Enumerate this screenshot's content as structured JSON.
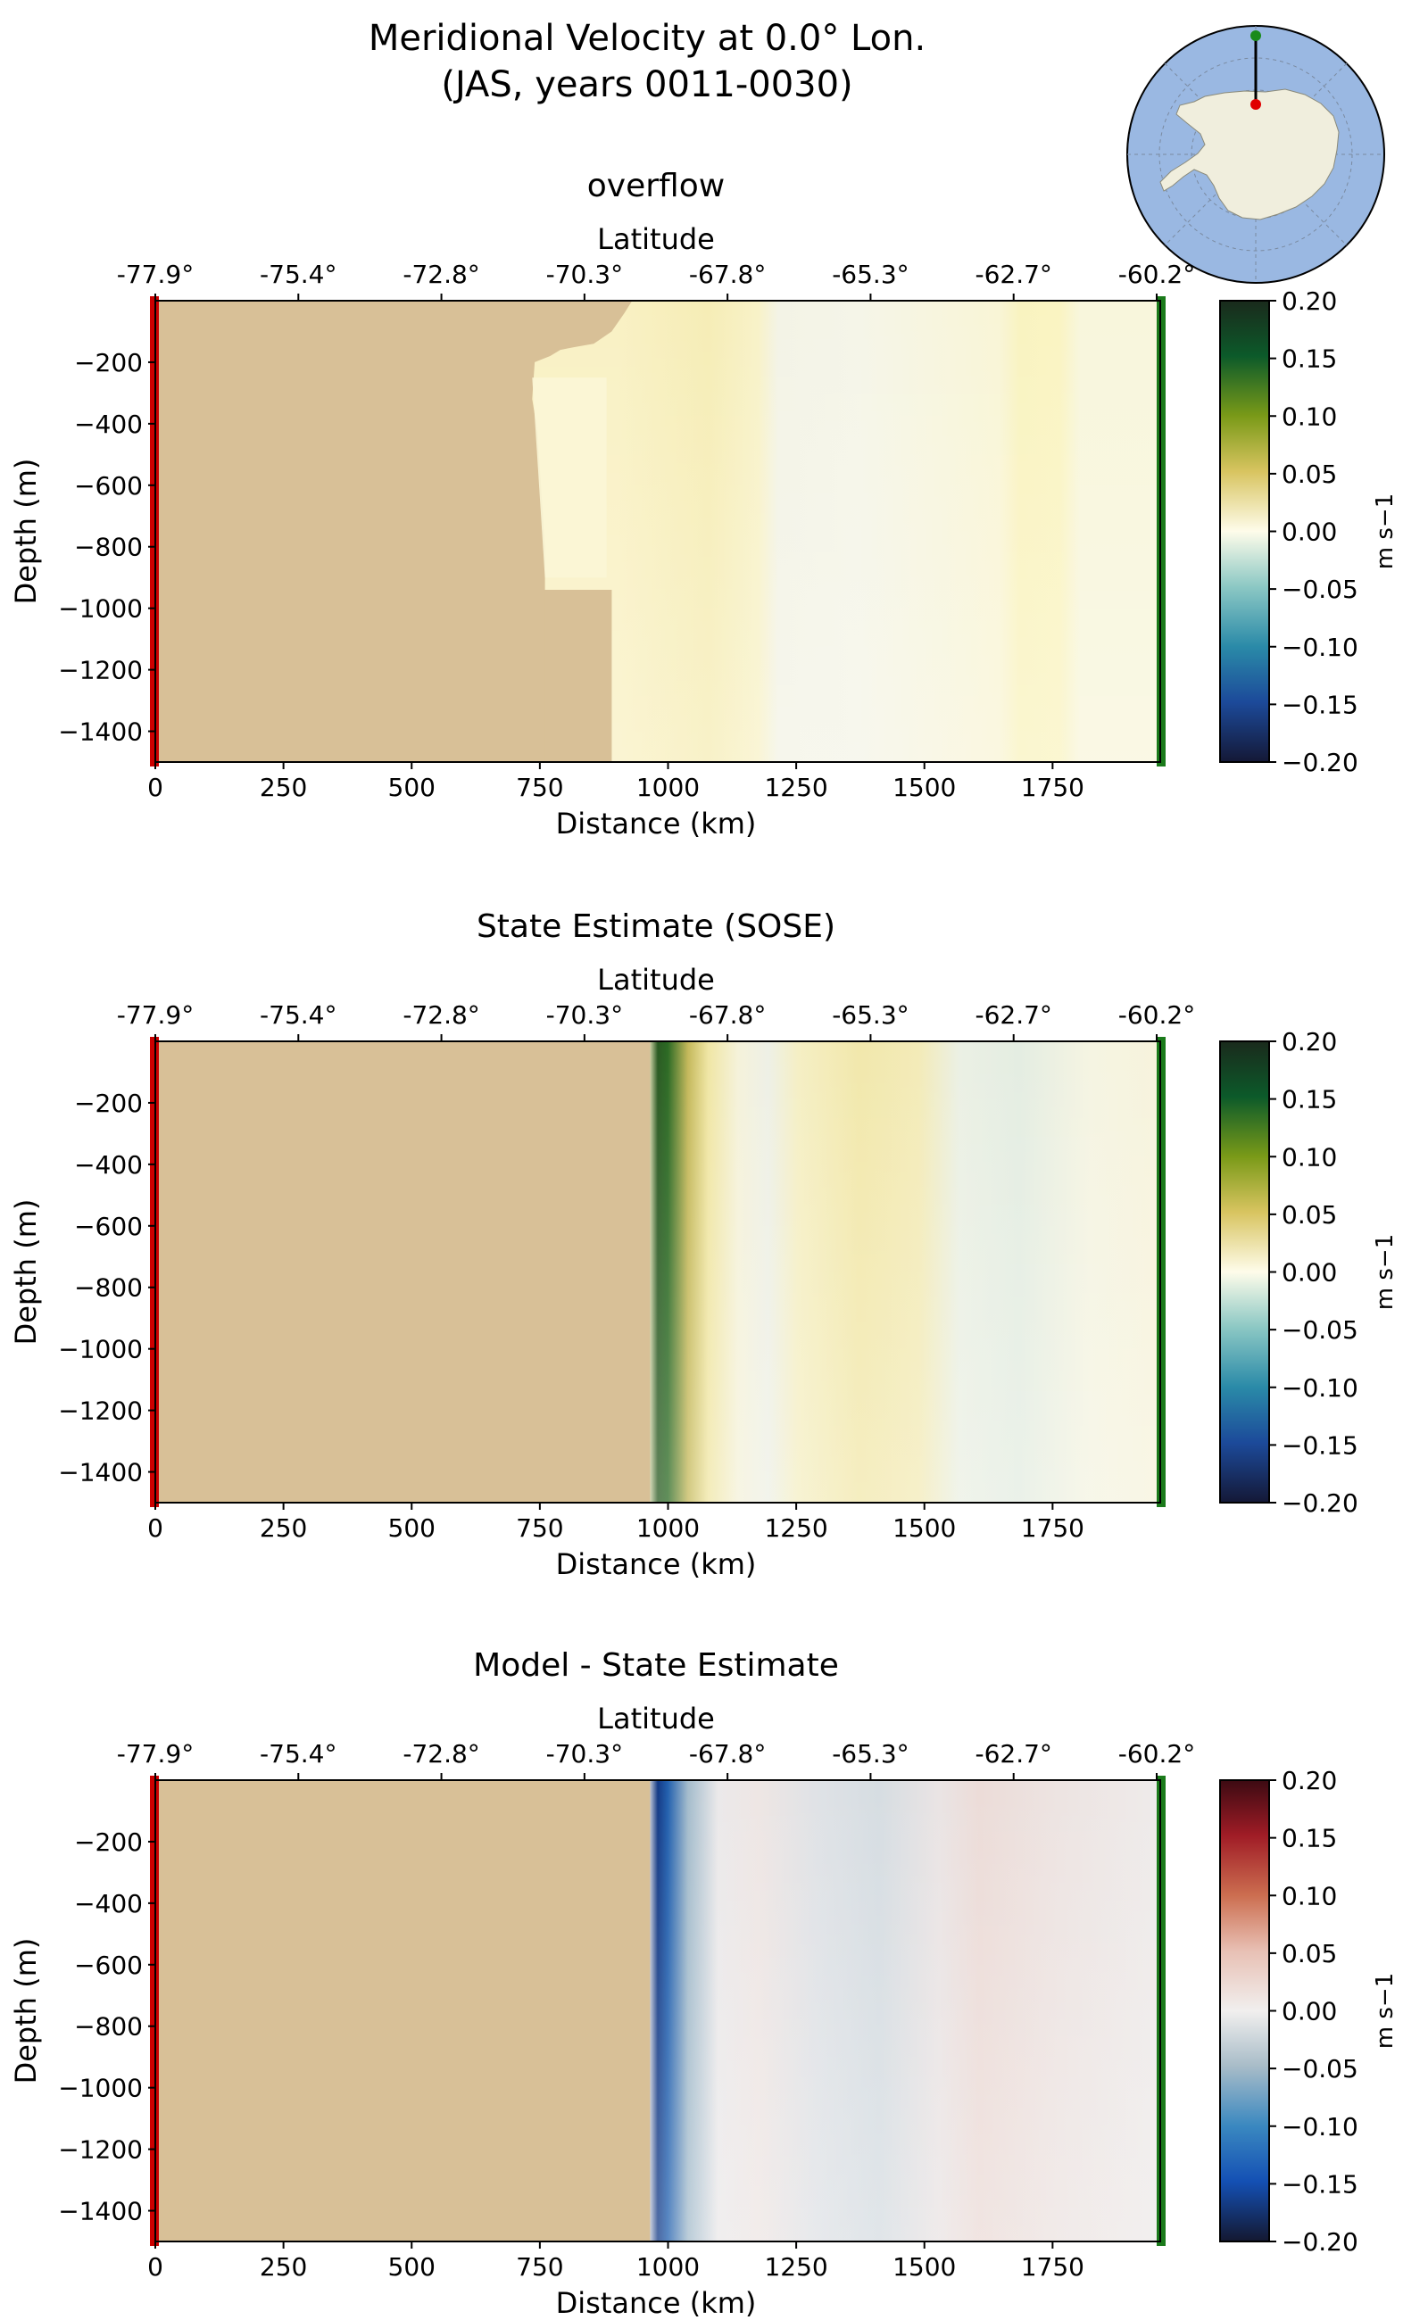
{
  "figure": {
    "title_line1": "Meridional Velocity at 0.0° Lon.",
    "title_line2": "(JAS, years 0011-0030)"
  },
  "chart_data": [
    {
      "type": "heatmap",
      "title": "overflow",
      "xlabel": "Distance (km)",
      "ylabel": "Depth (m)",
      "top_xlabel": "Latitude",
      "xlim": [
        0,
        1960
      ],
      "ylim": [
        -1500,
        0
      ],
      "x_ticks": [
        0,
        250,
        500,
        750,
        1000,
        1250,
        1500,
        1750
      ],
      "y_ticks": [
        -200,
        -400,
        -600,
        -800,
        -1000,
        -1200,
        -1400
      ],
      "top_ticks": [
        "-77.9°",
        "-75.4°",
        "-72.8°",
        "-70.3°",
        "-67.8°",
        "-65.3°",
        "-62.7°",
        "-60.2°"
      ],
      "colorbar": {
        "label": "m s−1",
        "range": [
          -0.2,
          0.2
        ],
        "ticks": [
          "0.20",
          "0.15",
          "0.10",
          "0.05",
          "0.00",
          "−0.05",
          "−0.10",
          "−0.15",
          "−0.20"
        ],
        "colormap": "diverging-green-yellow-blue"
      }
    },
    {
      "type": "heatmap",
      "title": "State Estimate (SOSE)",
      "xlabel": "Distance (km)",
      "ylabel": "Depth (m)",
      "top_xlabel": "Latitude",
      "xlim": [
        0,
        1960
      ],
      "ylim": [
        -1500,
        0
      ],
      "x_ticks": [
        0,
        250,
        500,
        750,
        1000,
        1250,
        1500,
        1750
      ],
      "y_ticks": [
        -200,
        -400,
        -600,
        -800,
        -1000,
        -1200,
        -1400
      ],
      "top_ticks": [
        "-77.9°",
        "-75.4°",
        "-72.8°",
        "-70.3°",
        "-67.8°",
        "-65.3°",
        "-62.7°",
        "-60.2°"
      ],
      "colorbar": {
        "label": "m s−1",
        "range": [
          -0.2,
          0.2
        ],
        "ticks": [
          "0.20",
          "0.15",
          "0.10",
          "0.05",
          "0.00",
          "−0.05",
          "−0.10",
          "−0.15",
          "−0.20"
        ],
        "colormap": "diverging-green-yellow-blue"
      }
    },
    {
      "type": "heatmap",
      "title": "Model - State Estimate",
      "xlabel": "Distance (km)",
      "ylabel": "Depth (m)",
      "top_xlabel": "Latitude",
      "xlim": [
        0,
        1960
      ],
      "ylim": [
        -1500,
        0
      ],
      "x_ticks": [
        0,
        250,
        500,
        750,
        1000,
        1250,
        1500,
        1750
      ],
      "y_ticks": [
        -200,
        -400,
        -600,
        -800,
        -1000,
        -1200,
        -1400
      ],
      "top_ticks": [
        "-77.9°",
        "-75.4°",
        "-72.8°",
        "-70.3°",
        "-67.8°",
        "-65.3°",
        "-62.7°",
        "-60.2°"
      ],
      "colorbar": {
        "label": "m s−1",
        "range": [
          -0.2,
          0.2
        ],
        "ticks": [
          "0.20",
          "0.15",
          "0.10",
          "0.05",
          "0.00",
          "−0.05",
          "−0.10",
          "−0.15",
          "−0.20"
        ],
        "colormap": "diverging-red-white-blue"
      }
    }
  ],
  "colors": {
    "land": "#d8c097",
    "section_start_marker": "#cc0000",
    "section_end_marker": "#1a7a1a",
    "ocean_map": "#9ab8e2",
    "continent_map": "#f0eedd"
  }
}
